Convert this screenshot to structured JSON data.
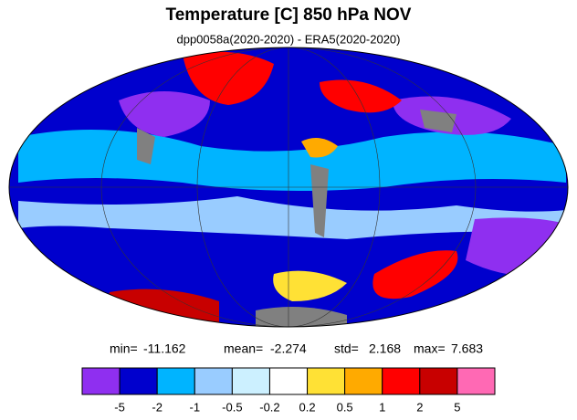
{
  "title": "Temperature [C] 850 hPa NOV",
  "subtitle": "dpp0058a(2020-2020) - ERA5(2020-2020)",
  "stats": [
    {
      "label": "min=",
      "value": -11.162
    },
    {
      "label": "mean=",
      "value": -2.274
    },
    {
      "label": "std=",
      "value": 2.168
    },
    {
      "label": "max=",
      "value": 7.683
    }
  ],
  "colorbar": {
    "colors": [
      "#8f2ff0",
      "#0000cd",
      "#00b4ff",
      "#99ccff",
      "#ccf0ff",
      "#ffffff",
      "#ffe135",
      "#ffaa00",
      "#ff0000",
      "#c80000",
      "#ff69b4"
    ],
    "labels": [
      -5,
      -2,
      -1,
      -0.5,
      -0.2,
      0.2,
      0.5,
      1,
      2,
      5
    ]
  }
}
